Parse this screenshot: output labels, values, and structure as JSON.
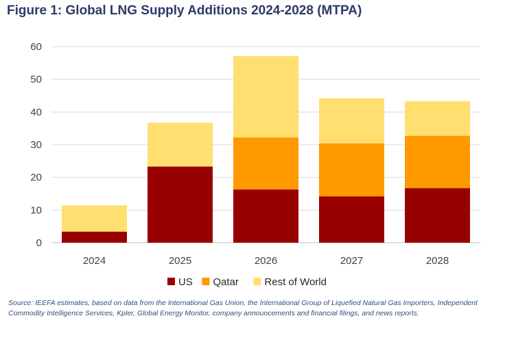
{
  "chart_data": {
    "type": "bar",
    "stacked": true,
    "title": "Figure 1: Global LNG Supply Additions 2024-2028 (MTPA)",
    "categories": [
      "2024",
      "2025",
      "2026",
      "2027",
      "2028"
    ],
    "series": [
      {
        "name": "US",
        "color": "#990000",
        "values": [
          3.4,
          23.3,
          16.3,
          14.2,
          16.7
        ]
      },
      {
        "name": "Qatar",
        "color": "#ff9900",
        "values": [
          0,
          0,
          15.9,
          16.2,
          16.0
        ]
      },
      {
        "name": "Rest of World",
        "color": "#ffdf70",
        "values": [
          8.0,
          13.4,
          24.9,
          13.8,
          10.6
        ]
      }
    ],
    "yticks": [
      "0",
      "10",
      "20",
      "30",
      "40",
      "50",
      "60"
    ],
    "ylim": [
      0,
      60
    ],
    "grid": true,
    "legend_position": "bottom",
    "xlabel": "",
    "ylabel": ""
  },
  "source_note": "Source: IEEFA estimates, based on data from the International Gas Union, the International Group of Liquefied Natural Gas Importers, Independent Commodity Intelligence Services, Kpler, Global Energy Monitor, company announcements and financial filings, and news reports.",
  "colors": {
    "title": "#2b3a67",
    "grid": "#d9d9d9",
    "axis_text": "#404040",
    "source_text": "#2f4f7f"
  }
}
